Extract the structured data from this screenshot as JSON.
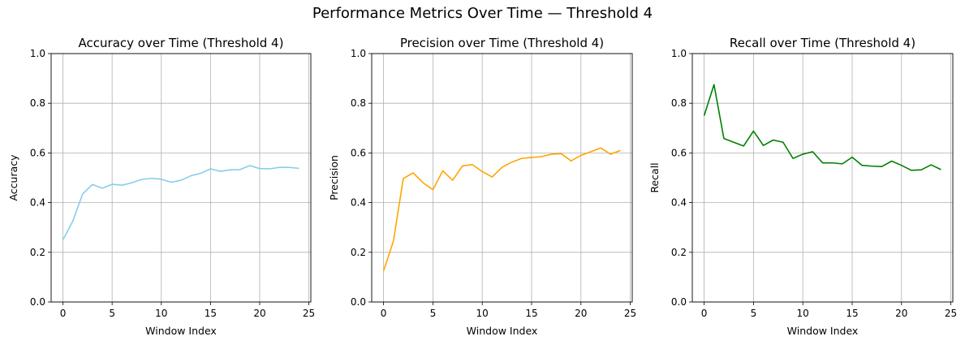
{
  "figure": {
    "title": "Performance Metrics Over Time — Threshold 4"
  },
  "chart_data": [
    {
      "type": "line",
      "title": "Accuracy over Time (Threshold 4)",
      "xlabel": "Window Index",
      "ylabel": "Accuracy",
      "xlim": [
        -1.2,
        25.2
      ],
      "ylim": [
        0.0,
        1.0
      ],
      "xticks": [
        0,
        5,
        10,
        15,
        20,
        25
      ],
      "yticks": [
        0.0,
        0.2,
        0.4,
        0.6,
        0.8,
        1.0
      ],
      "grid": true,
      "color": "#87ceeb",
      "x": [
        0,
        1,
        2,
        3,
        4,
        5,
        6,
        7,
        8,
        9,
        10,
        11,
        12,
        13,
        14,
        15,
        16,
        17,
        18,
        19,
        20,
        21,
        22,
        23,
        24
      ],
      "y": [
        0.25,
        0.325,
        0.435,
        0.473,
        0.458,
        0.474,
        0.47,
        0.48,
        0.493,
        0.498,
        0.494,
        0.482,
        0.49,
        0.508,
        0.518,
        0.536,
        0.526,
        0.532,
        0.533,
        0.549,
        0.537,
        0.536,
        0.542,
        0.542,
        0.538
      ]
    },
    {
      "type": "line",
      "title": "Precision over Time (Threshold 4)",
      "xlabel": "Window Index",
      "ylabel": "Precision",
      "xlim": [
        -1.2,
        25.2
      ],
      "ylim": [
        0.0,
        1.0
      ],
      "xticks": [
        0,
        5,
        10,
        15,
        20,
        25
      ],
      "yticks": [
        0.0,
        0.2,
        0.4,
        0.6,
        0.8,
        1.0
      ],
      "grid": true,
      "color": "#ffa500",
      "x": [
        0,
        1,
        2,
        3,
        4,
        5,
        6,
        7,
        8,
        9,
        10,
        11,
        12,
        13,
        14,
        15,
        16,
        17,
        18,
        19,
        20,
        21,
        22,
        23,
        24
      ],
      "y": [
        0.125,
        0.245,
        0.497,
        0.52,
        0.48,
        0.452,
        0.528,
        0.49,
        0.548,
        0.553,
        0.525,
        0.503,
        0.542,
        0.563,
        0.578,
        0.582,
        0.585,
        0.595,
        0.597,
        0.568,
        0.59,
        0.605,
        0.62,
        0.595,
        0.61
      ]
    },
    {
      "type": "line",
      "title": "Recall over Time (Threshold 4)",
      "xlabel": "Window Index",
      "ylabel": "Recall",
      "xlim": [
        -1.2,
        25.2
      ],
      "ylim": [
        0.0,
        1.0
      ],
      "xticks": [
        0,
        5,
        10,
        15,
        20,
        25
      ],
      "yticks": [
        0.0,
        0.2,
        0.4,
        0.6,
        0.8,
        1.0
      ],
      "grid": true,
      "color": "#008000",
      "x": [
        0,
        1,
        2,
        3,
        4,
        5,
        6,
        7,
        8,
        9,
        10,
        11,
        12,
        13,
        14,
        15,
        16,
        17,
        18,
        19,
        20,
        21,
        22,
        23,
        24
      ],
      "y": [
        0.75,
        0.875,
        0.658,
        0.643,
        0.628,
        0.688,
        0.63,
        0.652,
        0.643,
        0.578,
        0.595,
        0.605,
        0.56,
        0.56,
        0.556,
        0.583,
        0.55,
        0.547,
        0.545,
        0.567,
        0.55,
        0.53,
        0.532,
        0.552,
        0.533
      ]
    }
  ]
}
